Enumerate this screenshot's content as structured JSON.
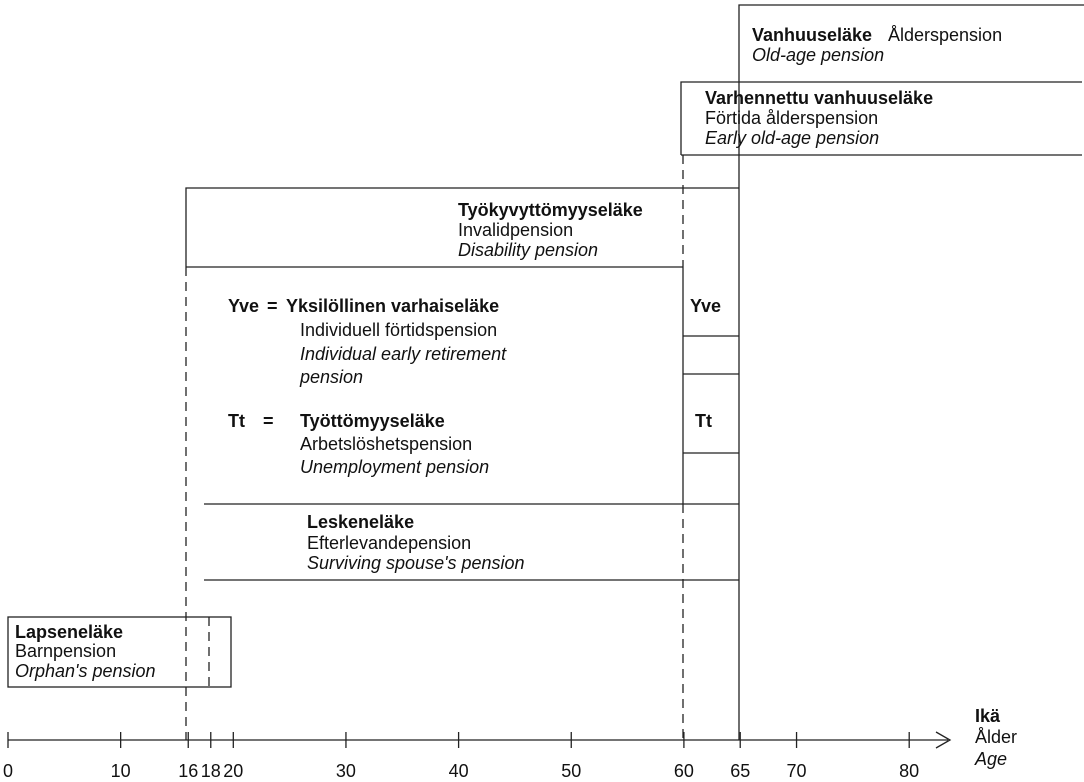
{
  "old_age": {
    "title": "Vanhuuseläke",
    "swedish": "Ålderspension",
    "english": "Old-age pension"
  },
  "early_old_age": {
    "title": "Varhennettu vanhuuseläke",
    "swedish": "Förtida ålderspension",
    "english": "Early old-age pension"
  },
  "disability": {
    "title": "Työkyvyttömyyseläke",
    "swedish": "Invalidpension",
    "english": "Disability pension"
  },
  "individual_early": {
    "abbr": "Yve",
    "eq": "=",
    "title": "Yksilöllinen varhaiseläke",
    "swedish": "Individuell förtidspension",
    "english": [
      "Individual early retirement",
      "pension"
    ]
  },
  "unemployment": {
    "abbr": "Tt",
    "eq": "=",
    "title": "Työttömyyseläke",
    "swedish": "Arbetslöshetspension",
    "english": "Unemployment pension"
  },
  "surviving": {
    "title": "Leskeneläke",
    "swedish": "Efterlevandepension",
    "english": "Surviving spouse's pension"
  },
  "orphan": {
    "title": "Lapseneläke",
    "swedish": "Barnpension",
    "english": "Orphan's pension"
  },
  "axis": {
    "ticks": [
      0,
      10,
      16,
      18,
      20,
      30,
      40,
      50,
      60,
      65,
      70,
      80
    ],
    "label": {
      "finnish": "Ikä",
      "swedish": "Ålder",
      "english": "Age"
    }
  }
}
